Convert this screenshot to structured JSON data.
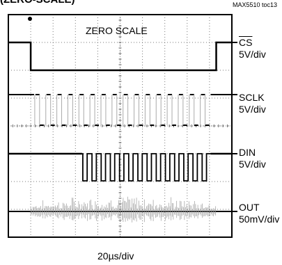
{
  "header": {
    "part_number": "MAX5510 toc13",
    "title_fragment": "(ZERO-SCALE)"
  },
  "chart_data": {
    "type": "line",
    "title": "ZERO SCALE",
    "x_scale": "20µs/div",
    "grid": {
      "divisions_x": 10,
      "divisions_y": 8,
      "minor_ticks": true
    },
    "channels": [
      {
        "name": "CS",
        "name_overline": true,
        "scale": "5V/div",
        "shape": "step",
        "high_level": 1,
        "low_level": 0,
        "segments": [
          {
            "x_start": 0.0,
            "x_end": 1.0,
            "level": 1
          },
          {
            "x_start": 1.0,
            "x_end": 9.3,
            "level": 0
          },
          {
            "x_start": 9.3,
            "x_end": 10.0,
            "level": 1
          }
        ]
      },
      {
        "name": "SCLK",
        "scale": "5V/div",
        "shape": "clock",
        "idle_level": 1,
        "burst_start": 1.15,
        "burst_end": 9.05,
        "pulses": 16
      },
      {
        "name": "DIN",
        "scale": "5V/div",
        "shape": "data",
        "idle_level": 1,
        "low_start": 3.3,
        "burst_start": 3.3,
        "burst_end": 9.05,
        "pulses": 14
      },
      {
        "name": "OUT",
        "scale": "50mV/div",
        "shape": "noise",
        "noise_start": 1.0,
        "noise_end": 9.3
      }
    ]
  }
}
